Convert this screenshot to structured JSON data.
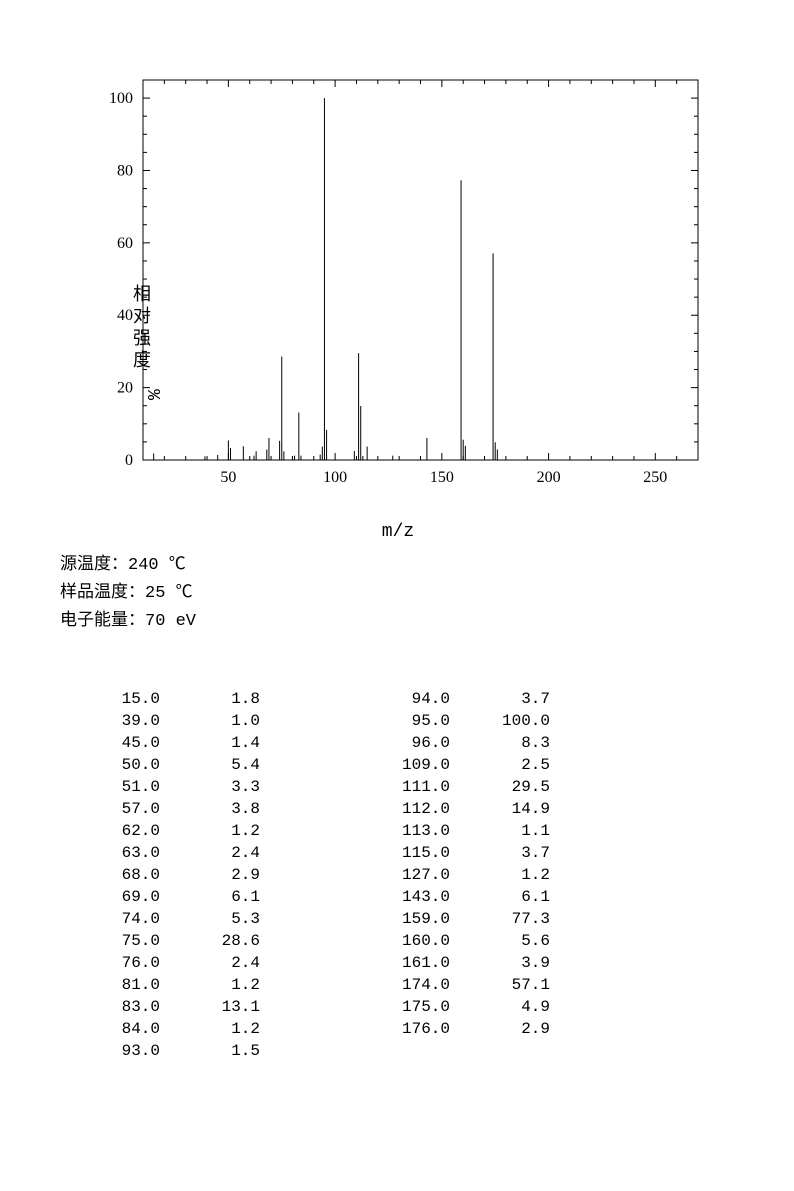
{
  "chart": {
    "type": "bar",
    "xlim": [
      10,
      270
    ],
    "ylim": [
      0,
      105
    ],
    "xtick_start": 50,
    "xtick_step": 50,
    "xtick_end": 250,
    "ytick_start": 0,
    "ytick_step": 20,
    "ytick_end": 100,
    "minor_x_step": 10,
    "minor_y_step": 5,
    "axis_color": "#000000",
    "background_color": "#ffffff",
    "line_width": 1,
    "xlabel": "m/z",
    "ylabel_cn": "相对强度",
    "ylabel_en": "%",
    "tick_fontsize": 16,
    "label_fontsize": 18,
    "peaks": [
      {
        "mz": 15.0,
        "int": 1.8
      },
      {
        "mz": 39.0,
        "int": 1.0
      },
      {
        "mz": 45.0,
        "int": 1.4
      },
      {
        "mz": 50.0,
        "int": 5.4
      },
      {
        "mz": 51.0,
        "int": 3.3
      },
      {
        "mz": 57.0,
        "int": 3.8
      },
      {
        "mz": 62.0,
        "int": 1.2
      },
      {
        "mz": 63.0,
        "int": 2.4
      },
      {
        "mz": 68.0,
        "int": 2.9
      },
      {
        "mz": 69.0,
        "int": 6.1
      },
      {
        "mz": 74.0,
        "int": 5.3
      },
      {
        "mz": 75.0,
        "int": 28.6
      },
      {
        "mz": 76.0,
        "int": 2.4
      },
      {
        "mz": 81.0,
        "int": 1.2
      },
      {
        "mz": 83.0,
        "int": 13.1
      },
      {
        "mz": 84.0,
        "int": 1.2
      },
      {
        "mz": 93.0,
        "int": 1.5
      },
      {
        "mz": 94.0,
        "int": 3.7
      },
      {
        "mz": 95.0,
        "int": 100.0
      },
      {
        "mz": 96.0,
        "int": 8.3
      },
      {
        "mz": 109.0,
        "int": 2.5
      },
      {
        "mz": 111.0,
        "int": 29.5
      },
      {
        "mz": 112.0,
        "int": 14.9
      },
      {
        "mz": 113.0,
        "int": 1.1
      },
      {
        "mz": 115.0,
        "int": 3.7
      },
      {
        "mz": 127.0,
        "int": 1.2
      },
      {
        "mz": 143.0,
        "int": 6.1
      },
      {
        "mz": 159.0,
        "int": 77.3
      },
      {
        "mz": 160.0,
        "int": 5.6
      },
      {
        "mz": 161.0,
        "int": 3.9
      },
      {
        "mz": 174.0,
        "int": 57.1
      },
      {
        "mz": 175.0,
        "int": 4.9
      },
      {
        "mz": 176.0,
        "int": 2.9
      }
    ]
  },
  "meta": {
    "source_temp_label": "源温度：",
    "source_temp_value": "240 ℃",
    "sample_temp_label": "样品温度：",
    "sample_temp_value": "25 ℃",
    "electron_energy_label": "电子能量：",
    "electron_energy_value": "70 eV"
  },
  "table": {
    "col1_rows": 17,
    "col2_rows": 16,
    "decimals_mz": 1,
    "decimals_int": 1
  }
}
